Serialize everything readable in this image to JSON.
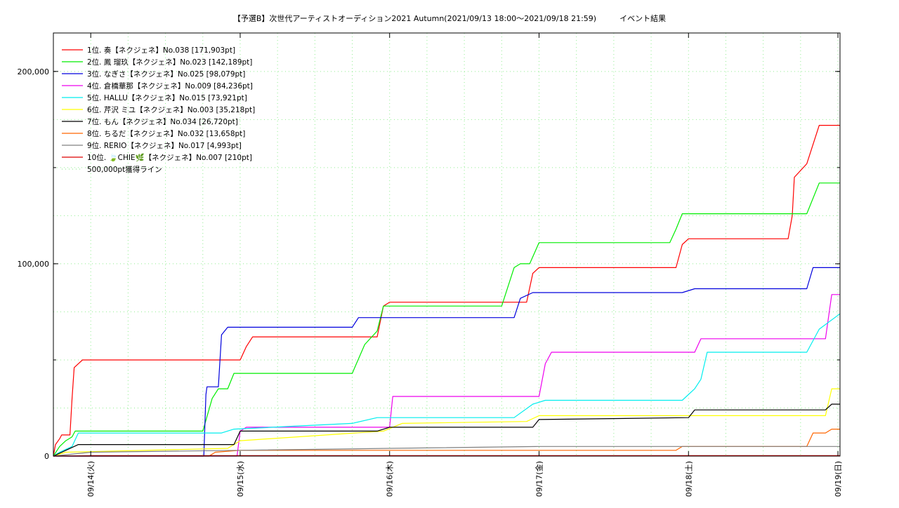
{
  "chart_data": {
    "type": "line",
    "title": "【予選B】次世代アーティストオーディション2021 Autumn(2021/09/13 18:00～2021/09/18 21:59)　　　イベント結果",
    "xlabel": "",
    "ylabel": "",
    "x_range": [
      "2021/09/13 18:00",
      "2021/09/19 00:20"
    ],
    "ylim": [
      0,
      220000
    ],
    "y_ticks": [
      0,
      100000,
      200000
    ],
    "y_tick_labels": [
      "0",
      "100,000",
      "200,000"
    ],
    "x_tick_labels": [
      "09/14(火)",
      "09/15(水)",
      "09/16(木)",
      "09/17(金)",
      "09/18(土)",
      "09/19(日)"
    ],
    "x_ticks": [
      "2021/09/14 00:00",
      "2021/09/15 00:00",
      "2021/09/16 00:00",
      "2021/09/17 00:00",
      "2021/09/18 00:00",
      "2021/09/19 00:00"
    ],
    "grid": true,
    "legend_position": "top-left",
    "series": [
      {
        "name": "1位. 奏【ネクジェネ】No.038 [171,903pt]",
        "color": "#ff0000",
        "points": [
          [
            "2021/09/13 18:00",
            0
          ],
          [
            "2021/09/13 18:20",
            6000
          ],
          [
            "2021/09/13 19:00",
            9000
          ],
          [
            "2021/09/13 19:20",
            11000
          ],
          [
            "2021/09/13 20:40",
            11000
          ],
          [
            "2021/09/13 21:00",
            30000
          ],
          [
            "2021/09/13 21:20",
            46000
          ],
          [
            "2021/09/13 22:00",
            48000
          ],
          [
            "2021/09/13 22:40",
            50000
          ],
          [
            "2021/09/15 00:00",
            50000
          ],
          [
            "2021/09/15 01:00",
            57000
          ],
          [
            "2021/09/15 02:00",
            62000
          ],
          [
            "2021/09/15 22:00",
            62000
          ],
          [
            "2021/09/15 23:00",
            78000
          ],
          [
            "2021/09/16 00:00",
            80000
          ],
          [
            "2021/09/16 22:00",
            80000
          ],
          [
            "2021/09/16 23:00",
            95000
          ],
          [
            "2021/09/17 00:00",
            98000
          ],
          [
            "2021/09/17 22:00",
            98000
          ],
          [
            "2021/09/17 23:00",
            110000
          ],
          [
            "2021/09/18 00:00",
            113000
          ],
          [
            "2021/09/18 16:00",
            113000
          ],
          [
            "2021/09/18 16:40",
            125000
          ],
          [
            "2021/09/18 17:00",
            145000
          ],
          [
            "2021/09/18 19:00",
            152000
          ],
          [
            "2021/09/18 21:00",
            172000
          ],
          [
            "2021/09/19 00:20",
            172000
          ]
        ]
      },
      {
        "name": "2位. 鳳 瑠玖【ネクジェネ】No.023 [142,189pt]",
        "color": "#00ee00",
        "points": [
          [
            "2021/09/13 18:00",
            0
          ],
          [
            "2021/09/13 19:00",
            5000
          ],
          [
            "2021/09/13 20:00",
            8000
          ],
          [
            "2021/09/13 21:00",
            10000
          ],
          [
            "2021/09/13 21:30",
            13000
          ],
          [
            "2021/09/14 18:00",
            13000
          ],
          [
            "2021/09/14 19:30",
            30000
          ],
          [
            "2021/09/14 20:30",
            35000
          ],
          [
            "2021/09/14 22:00",
            35000
          ],
          [
            "2021/09/14 23:00",
            43000
          ],
          [
            "2021/09/15 18:00",
            43000
          ],
          [
            "2021/09/15 20:00",
            58000
          ],
          [
            "2021/09/15 22:00",
            65000
          ],
          [
            "2021/09/15 23:00",
            78000
          ],
          [
            "2021/09/16 18:00",
            78000
          ],
          [
            "2021/09/16 20:00",
            98000
          ],
          [
            "2021/09/16 21:00",
            100000
          ],
          [
            "2021/09/16 22:30",
            100000
          ],
          [
            "2021/09/17 00:00",
            111000
          ],
          [
            "2021/09/17 21:00",
            111000
          ],
          [
            "2021/09/17 22:00",
            118000
          ],
          [
            "2021/09/17 23:00",
            126000
          ],
          [
            "2021/09/18 19:00",
            126000
          ],
          [
            "2021/09/18 21:00",
            142000
          ],
          [
            "2021/09/19 00:20",
            142000
          ]
        ]
      },
      {
        "name": "3位. なぎさ【ネクジェネ】No.025 [98,079pt]",
        "color": "#0000dd",
        "points": [
          [
            "2021/09/13 18:00",
            0
          ],
          [
            "2021/09/14 18:10",
            0
          ],
          [
            "2021/09/14 18:30",
            32000
          ],
          [
            "2021/09/14 18:40",
            36000
          ],
          [
            "2021/09/14 20:30",
            36000
          ],
          [
            "2021/09/14 21:00",
            63000
          ],
          [
            "2021/09/14 22:00",
            67000
          ],
          [
            "2021/09/15 18:00",
            67000
          ],
          [
            "2021/09/15 19:00",
            72000
          ],
          [
            "2021/09/16 20:00",
            72000
          ],
          [
            "2021/09/16 21:00",
            82000
          ],
          [
            "2021/09/16 23:00",
            85000
          ],
          [
            "2021/09/17 23:00",
            85000
          ],
          [
            "2021/09/18 01:00",
            87000
          ],
          [
            "2021/09/18 19:00",
            87000
          ],
          [
            "2021/09/18 20:00",
            98000
          ],
          [
            "2021/09/19 00:20",
            98000
          ]
        ]
      },
      {
        "name": "4位. 倉橋華那【ネクジェネ】No.009 [84,236pt]",
        "color": "#ee00ee",
        "points": [
          [
            "2021/09/13 18:00",
            0
          ],
          [
            "2021/09/14 23:30",
            0
          ],
          [
            "2021/09/15 00:00",
            13000
          ],
          [
            "2021/09/15 01:00",
            15000
          ],
          [
            "2021/09/16 00:00",
            15000
          ],
          [
            "2021/09/16 00:30",
            31000
          ],
          [
            "2021/09/17 00:00",
            31000
          ],
          [
            "2021/09/17 01:00",
            48000
          ],
          [
            "2021/09/17 02:00",
            54000
          ],
          [
            "2021/09/18 01:00",
            54000
          ],
          [
            "2021/09/18 02:00",
            61000
          ],
          [
            "2021/09/18 22:00",
            61000
          ],
          [
            "2021/09/18 23:00",
            84000
          ],
          [
            "2021/09/19 00:20",
            84000
          ]
        ]
      },
      {
        "name": "5位. HALLU【ネクジェネ】No.015 [73,921pt]",
        "color": "#00eeee",
        "points": [
          [
            "2021/09/13 18:00",
            0
          ],
          [
            "2021/09/13 19:00",
            2000
          ],
          [
            "2021/09/13 21:00",
            5000
          ],
          [
            "2021/09/13 22:00",
            12000
          ],
          [
            "2021/09/14 21:00",
            12000
          ],
          [
            "2021/09/14 23:00",
            14000
          ],
          [
            "2021/09/15 18:00",
            17000
          ],
          [
            "2021/09/15 22:00",
            20000
          ],
          [
            "2021/09/16 20:00",
            20000
          ],
          [
            "2021/09/16 23:00",
            27000
          ],
          [
            "2021/09/17 01:00",
            29000
          ],
          [
            "2021/09/17 23:00",
            29000
          ],
          [
            "2021/09/18 01:00",
            35000
          ],
          [
            "2021/09/18 02:00",
            40000
          ],
          [
            "2021/09/18 03:00",
            54000
          ],
          [
            "2021/09/18 19:00",
            54000
          ],
          [
            "2021/09/18 20:00",
            60000
          ],
          [
            "2021/09/18 21:00",
            66000
          ],
          [
            "2021/09/19 00:20",
            74000
          ]
        ]
      },
      {
        "name": "6位. 芹沢 ミユ【ネクジェネ】No.003 [35,218pt]",
        "color": "#ffff00",
        "points": [
          [
            "2021/09/13 18:00",
            0
          ],
          [
            "2021/09/13 20:00",
            2000
          ],
          [
            "2021/09/14 22:00",
            4000
          ],
          [
            "2021/09/15 00:00",
            8000
          ],
          [
            "2021/09/15 23:00",
            13000
          ],
          [
            "2021/09/16 02:00",
            17000
          ],
          [
            "2021/09/16 22:00",
            18000
          ],
          [
            "2021/09/17 00:00",
            21000
          ],
          [
            "2021/09/18 22:00",
            21000
          ],
          [
            "2021/09/18 23:00",
            35000
          ],
          [
            "2021/09/19 00:20",
            35000
          ]
        ]
      },
      {
        "name": "7位. もん【ネクジェネ】No.034 [26,720pt]",
        "color": "#000000",
        "points": [
          [
            "2021/09/13 18:00",
            0
          ],
          [
            "2021/09/13 20:00",
            3000
          ],
          [
            "2021/09/13 22:00",
            6000
          ],
          [
            "2021/09/14 23:00",
            6000
          ],
          [
            "2021/09/15 00:00",
            13000
          ],
          [
            "2021/09/15 22:00",
            13000
          ],
          [
            "2021/09/16 00:00",
            15000
          ],
          [
            "2021/09/16 23:00",
            15000
          ],
          [
            "2021/09/17 00:00",
            19000
          ],
          [
            "2021/09/18 00:00",
            20000
          ],
          [
            "2021/09/18 01:00",
            24000
          ],
          [
            "2021/09/18 22:00",
            24000
          ],
          [
            "2021/09/18 23:00",
            27000
          ],
          [
            "2021/09/19 00:20",
            27000
          ]
        ]
      },
      {
        "name": "8位. ちるだ【ネクジェネ】No.032 [13,658pt]",
        "color": "#ff6600",
        "points": [
          [
            "2021/09/13 18:00",
            0
          ],
          [
            "2021/09/14 19:00",
            0
          ],
          [
            "2021/09/14 20:00",
            2000
          ],
          [
            "2021/09/15 00:00",
            3000
          ],
          [
            "2021/09/17 22:00",
            3000
          ],
          [
            "2021/09/17 23:00",
            5000
          ],
          [
            "2021/09/18 19:00",
            5000
          ],
          [
            "2021/09/18 20:00",
            12000
          ],
          [
            "2021/09/18 22:00",
            12000
          ],
          [
            "2021/09/18 23:00",
            14000
          ],
          [
            "2021/09/19 00:20",
            14000
          ]
        ]
      },
      {
        "name": "9位. RERIO【ネクジェネ】No.017 [4,993pt]",
        "color": "#808080",
        "points": [
          [
            "2021/09/13 18:00",
            0
          ],
          [
            "2021/09/14 00:00",
            2000
          ],
          [
            "2021/09/15 00:00",
            3000
          ],
          [
            "2021/09/16 00:00",
            4000
          ],
          [
            "2021/09/17 00:00",
            5000
          ],
          [
            "2021/09/19 00:20",
            5000
          ]
        ]
      },
      {
        "name": "10位. 🍃CHIE🌿【ネクジェネ】No.007 [210pt]",
        "color": "#dd0000",
        "points": [
          [
            "2021/09/13 18:00",
            0
          ],
          [
            "2021/09/14 00:00",
            210
          ],
          [
            "2021/09/19 00:20",
            210
          ]
        ]
      },
      {
        "name": "500,000pt獲得ライン",
        "color": "#90ee90",
        "dotted": true,
        "points": []
      }
    ]
  }
}
